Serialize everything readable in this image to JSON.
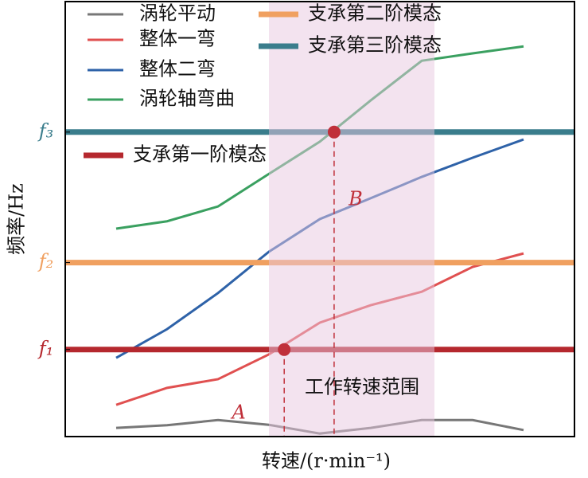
{
  "chart_data": {
    "type": "line",
    "xlabel": "转速/(r·min⁻¹)",
    "ylabel": "频率/Hz",
    "xlim": [
      0,
      10
    ],
    "ylim": [
      0,
      100
    ],
    "yticks": [
      {
        "value": 20,
        "label": "f₁"
      },
      {
        "value": 40,
        "label": "f₂"
      },
      {
        "value": 70,
        "label": "f₃"
      }
    ],
    "x": [
      1,
      2,
      3,
      4,
      5,
      6,
      7,
      8,
      9
    ],
    "series": [
      {
        "name": "涡轮平动",
        "color": "#777777",
        "values": [
          2,
          2.6,
          3.8,
          2.7,
          0.7,
          2,
          3.8,
          3.8,
          1.5
        ]
      },
      {
        "name": "整体一弯",
        "color": "#e05050",
        "values": [
          7.3,
          11.2,
          13.2,
          18.9,
          26.2,
          30.2,
          33.3,
          39,
          42.1
        ]
      },
      {
        "name": "整体二弯",
        "color": "#2e62a8",
        "values": [
          18.1,
          24.7,
          33,
          42.5,
          50,
          54.8,
          59.7,
          64.1,
          68.3
        ]
      },
      {
        "name": "涡轮轴弯曲",
        "color": "#3aa060",
        "values": [
          47.8,
          49.5,
          52.9,
          60.4,
          67.8,
          77.3,
          86.4,
          88.1,
          89.7
        ]
      }
    ],
    "hlines": [
      {
        "name": "支承第三阶模态",
        "color": "#3a7d8c",
        "value": 70
      },
      {
        "name": "支承第二阶模态",
        "color": "#f0a060",
        "value": 40
      },
      {
        "name": "支承第一阶模态",
        "color": "#b5282e",
        "value": 20
      }
    ],
    "region": {
      "label": "工作转速范围",
      "x": [
        4,
        7.25
      ],
      "color": "#e8c8e0"
    },
    "points": [
      {
        "label": "A",
        "x": 4.3,
        "y": 20
      },
      {
        "label": "B",
        "x": 5.28,
        "y": 70
      }
    ]
  }
}
